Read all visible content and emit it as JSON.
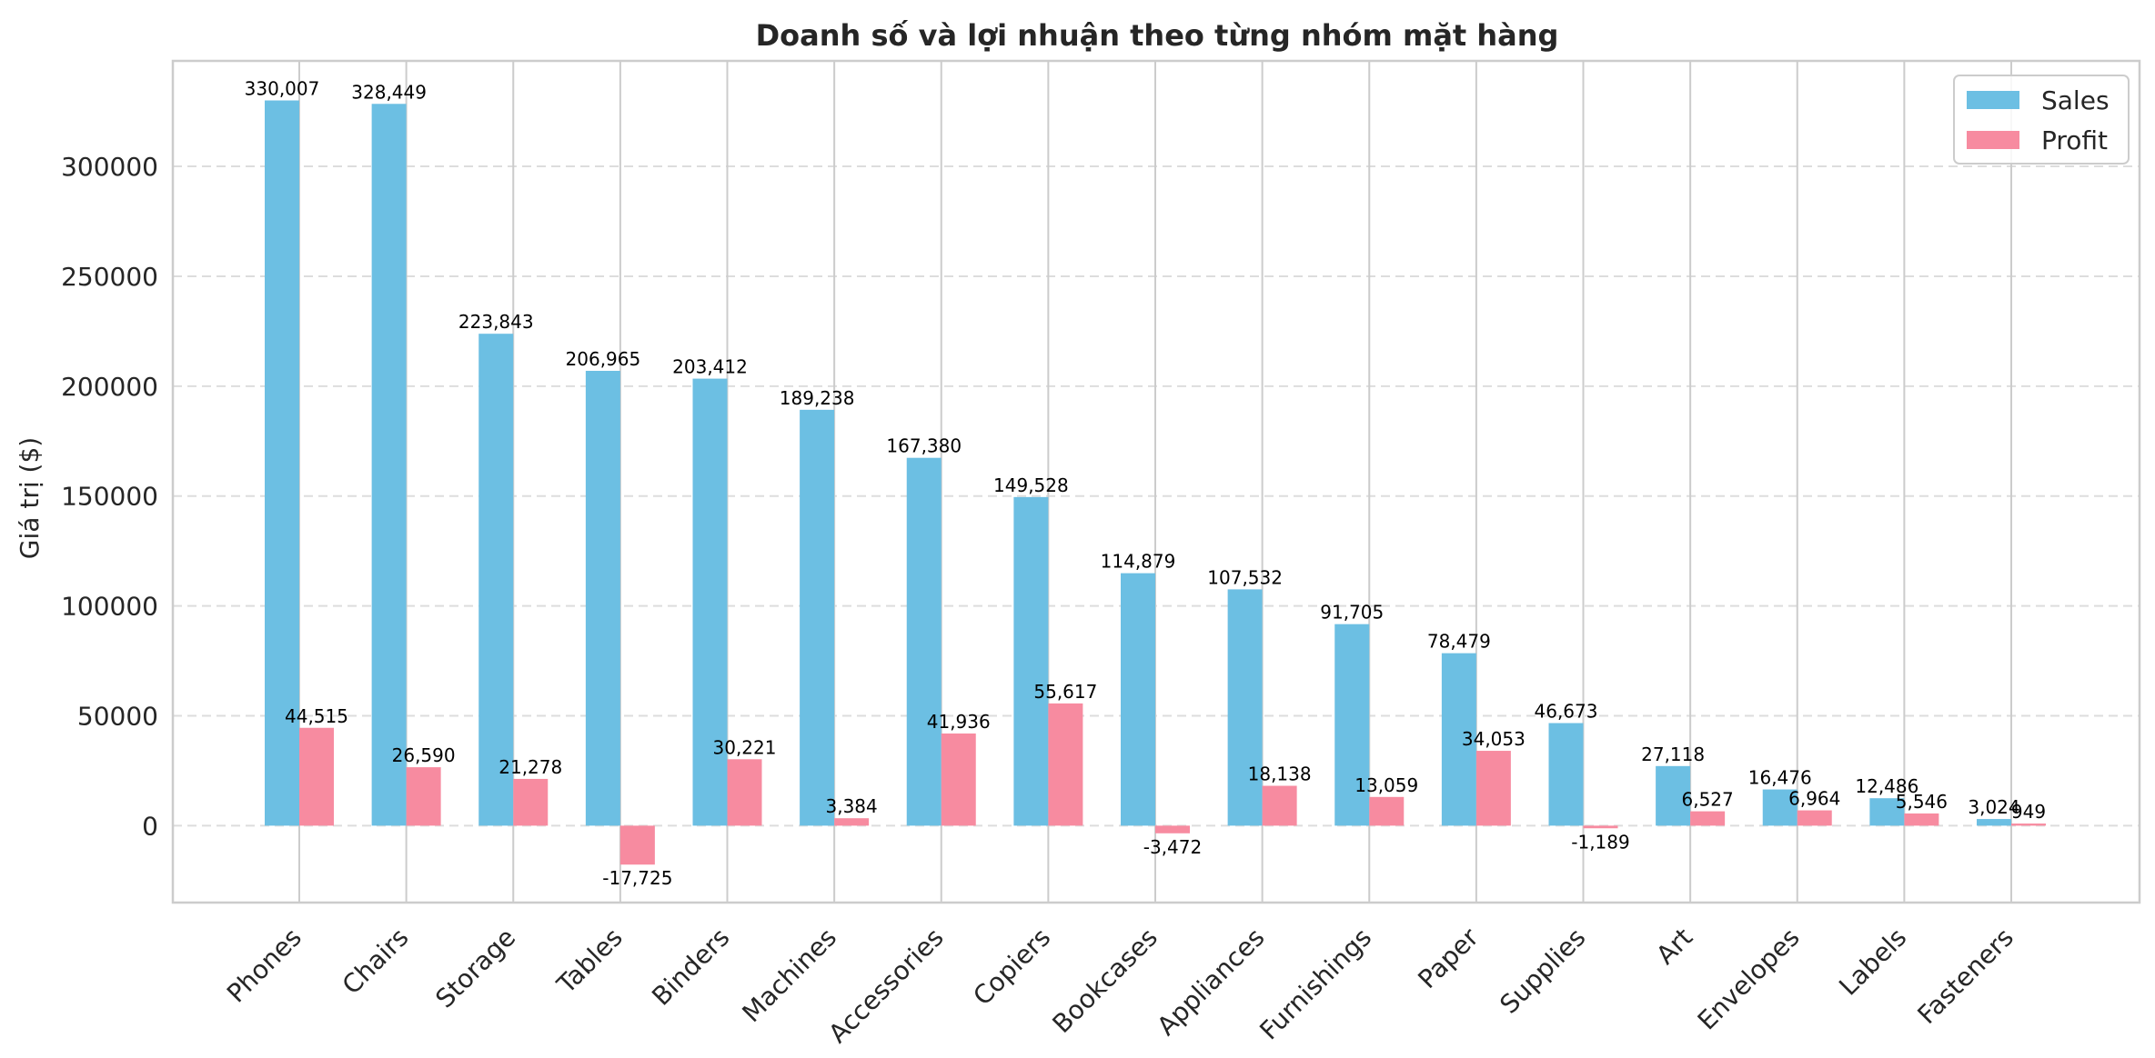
{
  "chart_data": {
    "type": "bar",
    "title": "Doanh số và lợi nhuận theo từng nhóm mặt hàng",
    "xlabel": "",
    "ylabel": "Giá trị ($)",
    "ylim": [
      -35000,
      348000
    ],
    "yticks": [
      0,
      50000,
      100000,
      150000,
      200000,
      250000,
      300000
    ],
    "grid": true,
    "legend_position": "top-right",
    "categories": [
      "Phones",
      "Chairs",
      "Storage",
      "Tables",
      "Binders",
      "Machines",
      "Accessories",
      "Copiers",
      "Bookcases",
      "Appliances",
      "Furnishings",
      "Paper",
      "Supplies",
      "Art",
      "Envelopes",
      "Labels",
      "Fasteners"
    ],
    "series": [
      {
        "name": "Sales",
        "color": "#6cbfe3",
        "values": [
          330007,
          328449,
          223843,
          206965,
          203412,
          189238,
          167380,
          149528,
          114879,
          107532,
          91705,
          78479,
          46673,
          27118,
          16476,
          12486,
          3024
        ],
        "labels": [
          "330,007",
          "328,449",
          "223,843",
          "206,965",
          "203,412",
          "189,238",
          "167,380",
          "149,528",
          "114,879",
          "107,532",
          "91,705",
          "78,479",
          "46,673",
          "27,118",
          "16,476",
          "12,486",
          "3,024"
        ]
      },
      {
        "name": "Profit",
        "color": "#f78ba0",
        "values": [
          44515,
          26590,
          21278,
          -17725,
          30221,
          3384,
          41936,
          55617,
          -3472,
          18138,
          13059,
          34053,
          -1189,
          6527,
          6964,
          5546,
          949
        ],
        "labels": [
          "44,515",
          "26,590",
          "21,278",
          "-17,725",
          "30,221",
          "3,384",
          "41,936",
          "55,617",
          "-3,472",
          "18,138",
          "13,059",
          "34,053",
          "-1,189",
          "6,527",
          "6,964",
          "5,546",
          "949"
        ]
      }
    ]
  }
}
